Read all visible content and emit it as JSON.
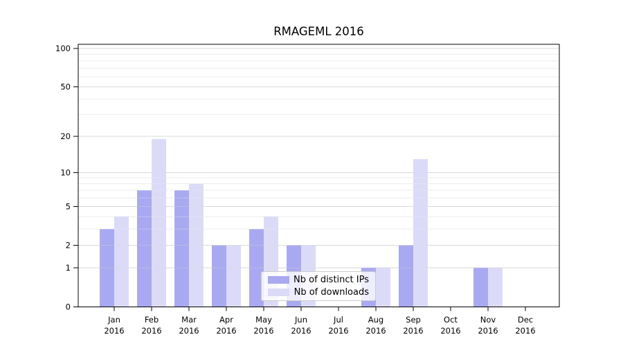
{
  "chart_data": {
    "type": "bar",
    "title": "RMAGEML 2016",
    "categories": [
      "Jan",
      "Feb",
      "Mar",
      "Apr",
      "May",
      "Jun",
      "Jul",
      "Aug",
      "Sep",
      "Oct",
      "Nov",
      "Dec"
    ],
    "x_tick_year": "2016",
    "series": [
      {
        "name": "Nb of distinct IPs",
        "color": "#a9a9f1",
        "values": [
          3,
          7,
          7,
          2,
          3,
          2,
          0,
          1,
          2,
          0,
          1,
          0
        ]
      },
      {
        "name": "Nb of downloads",
        "color": "#dbdbf8",
        "values": [
          4,
          19,
          8,
          2,
          4,
          2,
          0,
          1,
          13,
          0,
          1,
          0
        ]
      }
    ],
    "y_axis": {
      "scale": "log1p",
      "tick_values": [
        0,
        1,
        2,
        5,
        10,
        20,
        50,
        100
      ],
      "minor_gridline_values": [
        3,
        4,
        6,
        7,
        8,
        9,
        30,
        40,
        60,
        70,
        80,
        90
      ],
      "ylim": [
        0,
        108
      ]
    },
    "legend": {
      "position": "lower-center",
      "entries": [
        "Nb of distinct IPs",
        "Nb of downloads"
      ]
    },
    "grid": true,
    "colors": {
      "major_grid": "#d9d9d9",
      "minor_grid": "#ededed",
      "axis": "#000000",
      "background": "#ffffff"
    }
  }
}
